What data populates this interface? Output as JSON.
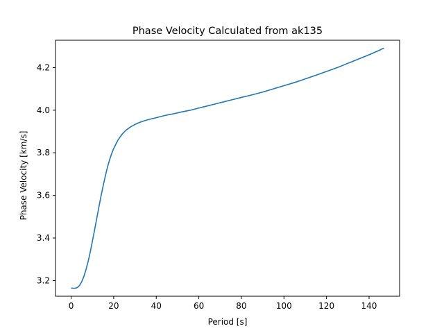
{
  "chart_data": {
    "type": "line",
    "title": "Phase Velocity Calculated from ak135",
    "xlabel": "Period [s]",
    "ylabel": "Phase Velocity [km/s]",
    "xlim": [
      -7.35,
      154.35
    ],
    "ylim": [
      3.1265,
      4.3285
    ],
    "xticks": [
      0,
      20,
      40,
      60,
      80,
      100,
      120,
      140
    ],
    "xtick_labels": [
      "0",
      "20",
      "40",
      "60",
      "80",
      "100",
      "120",
      "140"
    ],
    "yticks": [
      3.2,
      3.4,
      3.6,
      3.8,
      4.0,
      4.2
    ],
    "ytick_labels": [
      "3.2",
      "3.4",
      "3.6",
      "3.8",
      "4.0",
      "4.2"
    ],
    "grid": false,
    "series": [
      {
        "color": "#1f77b4",
        "x": [
          0,
          1,
          2,
          3,
          4,
          5,
          6,
          7,
          8,
          9,
          10,
          11,
          12,
          13,
          14,
          15,
          16,
          17,
          18,
          19,
          20,
          22,
          24,
          26,
          28,
          30,
          32,
          34,
          36,
          38,
          40,
          44,
          48,
          52,
          56,
          60,
          64,
          68,
          72,
          76,
          80,
          85,
          90,
          95,
          100,
          105,
          110,
          115,
          120,
          125,
          130,
          135,
          140,
          145,
          147
        ],
        "y": [
          3.165,
          3.164,
          3.164,
          3.168,
          3.178,
          3.195,
          3.22,
          3.252,
          3.29,
          3.335,
          3.385,
          3.437,
          3.49,
          3.543,
          3.595,
          3.643,
          3.688,
          3.73,
          3.765,
          3.795,
          3.82,
          3.86,
          3.888,
          3.908,
          3.922,
          3.933,
          3.942,
          3.949,
          3.955,
          3.96,
          3.965,
          3.975,
          3.983,
          3.992,
          4.0,
          4.01,
          4.02,
          4.03,
          4.04,
          4.05,
          4.06,
          4.072,
          4.085,
          4.1,
          4.115,
          4.13,
          4.147,
          4.164,
          4.182,
          4.2,
          4.22,
          4.24,
          4.26,
          4.282,
          4.292
        ]
      }
    ]
  }
}
